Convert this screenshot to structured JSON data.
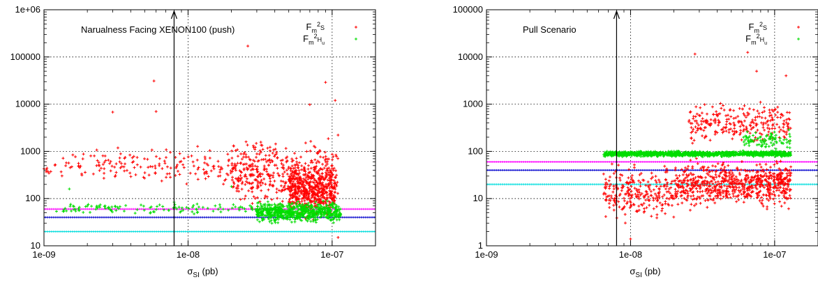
{
  "chart_data": [
    {
      "type": "scatter",
      "title": "Narualness Facing XENON100 (push)",
      "xlabel_main": "σ",
      "xlabel_sub": "SI",
      "xlabel_unit": "(pb)",
      "ylabel": "",
      "xscale": "log",
      "yscale": "log",
      "xlim": [
        1e-09,
        2e-07
      ],
      "ylim": [
        10,
        1000000
      ],
      "grid": true,
      "legend_position": "top-right",
      "x_ticks": [
        "1e-09",
        "1e-08",
        "1e-07"
      ],
      "y_ticks": [
        "10",
        "100",
        "1000",
        "10000",
        "100000",
        "1e+06"
      ],
      "vertical_arrow_x": 8e-09,
      "legend": [
        {
          "main": "F",
          "sub": "m",
          "sup": "2",
          "subsub": "S",
          "color": "#ff0000",
          "symbol": "+"
        },
        {
          "main": "F",
          "sub": "m",
          "sup": "2",
          "subsub": "H",
          "subsubsub": "u",
          "color": "#00dd00",
          "symbol": "+"
        }
      ],
      "reference_lines": [
        {
          "y": 60,
          "color": "#ff00ff"
        },
        {
          "y": 40,
          "color": "#0000cc"
        },
        {
          "y": 20,
          "color": "#00dddd"
        }
      ],
      "series": [
        {
          "color": "#ff0000",
          "clusters": [
            {
              "x": [
                1e-09,
                2.2e-08
              ],
              "y": [
                150,
                1500
              ],
              "n": 180
            },
            {
              "x": [
                2e-08,
                1.1e-07
              ],
              "y": [
                40,
                3000
              ],
              "n": 450
            },
            {
              "x": [
                5e-08,
                1.05e-07
              ],
              "y": [
                30,
                700
              ],
              "n": 500
            }
          ],
          "points": [
            [
              5.8e-09,
              31000
            ],
            [
              2.6e-08,
              170000
            ],
            [
              9e-08,
              29000
            ],
            [
              6e-09,
              7000
            ],
            [
              3e-09,
              6800
            ],
            [
              7e-08,
              9800
            ],
            [
              1.05e-07,
              12000
            ],
            [
              1.1e-07,
              15
            ]
          ]
        },
        {
          "color": "#00dd00",
          "clusters": [
            {
              "x": [
                1.2e-09,
                3e-08
              ],
              "y": [
                42,
                90
              ],
              "n": 120
            },
            {
              "x": [
                3e-08,
                1.15e-07
              ],
              "y": [
                28,
                95
              ],
              "n": 650
            }
          ],
          "points": [
            [
              1.5e-09,
              160
            ],
            [
              2e-08,
              180
            ]
          ]
        }
      ]
    },
    {
      "type": "scatter",
      "title": "Pull Scenario",
      "xlabel_main": "σ",
      "xlabel_sub": "SI",
      "xlabel_unit": "(pb)",
      "ylabel": "",
      "xscale": "log",
      "yscale": "log",
      "xlim": [
        1e-09,
        2e-07
      ],
      "ylim": [
        1,
        100000
      ],
      "grid": true,
      "legend_position": "top-right",
      "x_ticks": [
        "1e-09",
        "1e-08",
        "1e-07"
      ],
      "y_ticks": [
        "1",
        "10",
        "100",
        "1000",
        "10000",
        "100000"
      ],
      "vertical_arrow_x": 8e-09,
      "legend": [
        {
          "main": "F",
          "sub": "m",
          "sup": "2",
          "subsub": "S",
          "color": "#ff0000",
          "symbol": "+"
        },
        {
          "main": "F",
          "sub": "m",
          "sup": "2",
          "subsub": "H",
          "subsubsub": "u",
          "color": "#00dd00",
          "symbol": "+"
        }
      ],
      "reference_lines": [
        {
          "y": 60,
          "color": "#ff00ff"
        },
        {
          "y": 40,
          "color": "#0000cc"
        },
        {
          "y": 20,
          "color": "#00dddd"
        }
      ],
      "series": [
        {
          "color": "#ff0000",
          "clusters": [
            {
              "x": [
                6.5e-09,
                2e-08
              ],
              "y": [
                2.5,
                70
              ],
              "n": 250
            },
            {
              "x": [
                2e-08,
                1.3e-07
              ],
              "y": [
                5,
                80
              ],
              "n": 700
            },
            {
              "x": [
                2.5e-08,
                1.3e-07
              ],
              "y": [
                100,
                1500
              ],
              "n": 260
            }
          ],
          "points": [
            [
              2.8e-08,
              11500
            ],
            [
              6.5e-08,
              12500
            ],
            [
              7.5e-08,
              5000
            ],
            [
              1.2e-07,
              4000
            ],
            [
              1e-08,
              1.4
            ]
          ]
        },
        {
          "color": "#00dd00",
          "clusters": [
            {
              "x": [
                6.5e-09,
                1.3e-07
              ],
              "y": [
                75,
                105
              ],
              "n": 1200
            },
            {
              "x": [
                6e-08,
                1.3e-07
              ],
              "y": [
                100,
                300
              ],
              "n": 90
            }
          ],
          "points": []
        }
      ]
    }
  ]
}
